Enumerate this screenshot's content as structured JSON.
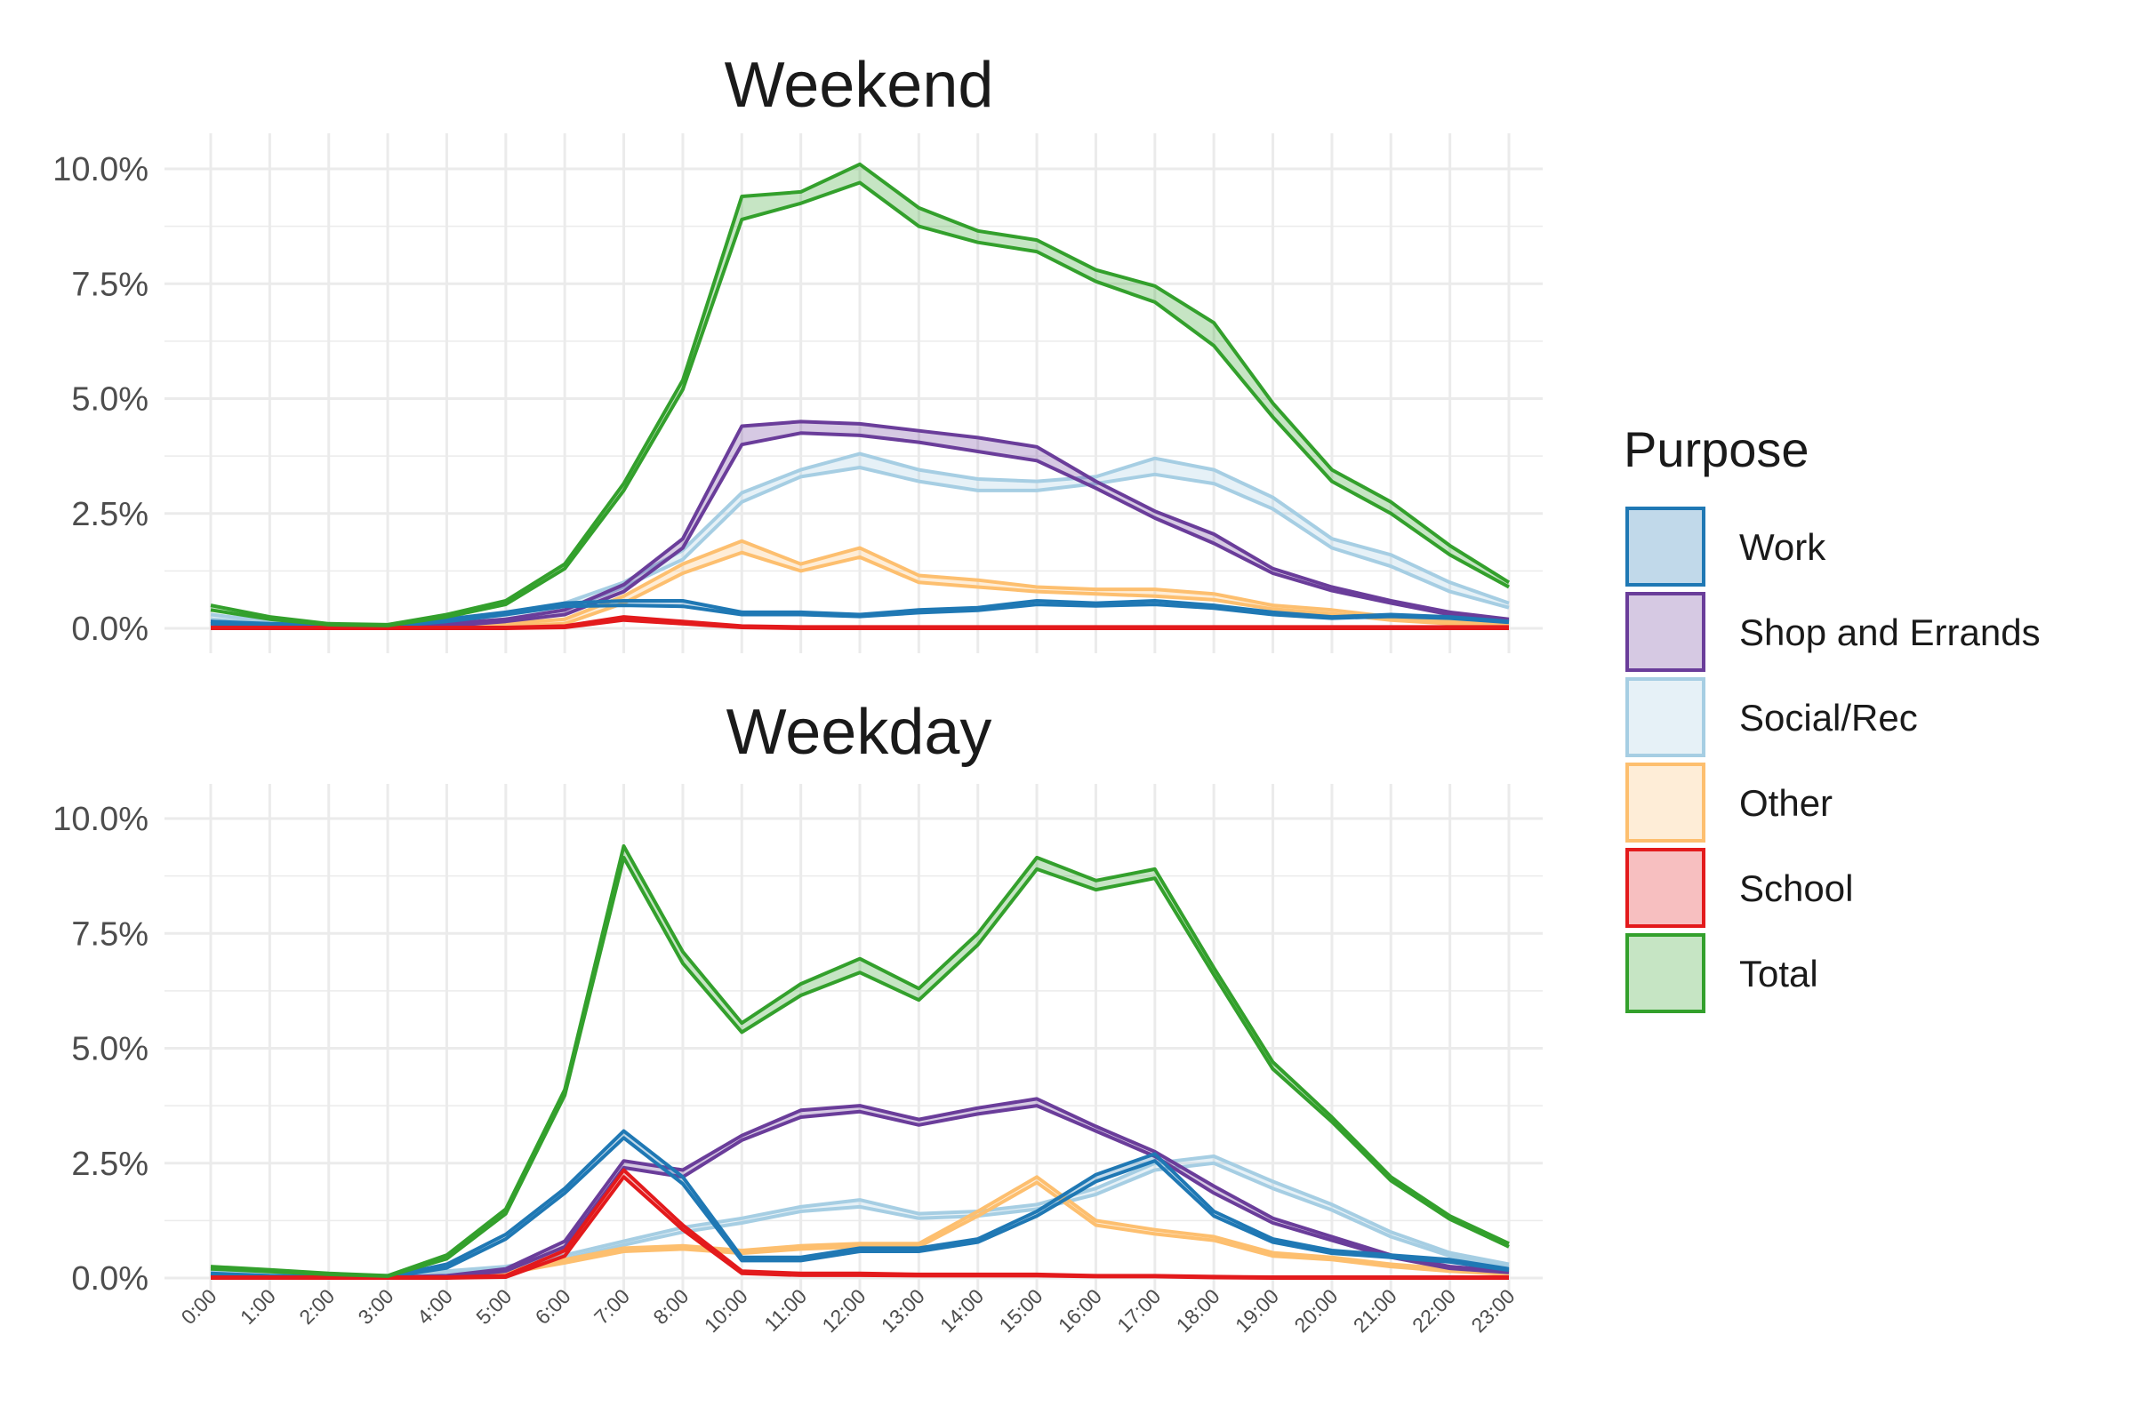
{
  "chart_data": {
    "type": "area",
    "legend": {
      "title": "Purpose",
      "position": "right",
      "items": [
        {
          "key": "work",
          "label": "Work"
        },
        {
          "key": "shop",
          "label": "Shop and Errands"
        },
        {
          "key": "social",
          "label": "Social/Rec"
        },
        {
          "key": "other",
          "label": "Other"
        },
        {
          "key": "school",
          "label": "School"
        },
        {
          "key": "total",
          "label": "Total"
        }
      ]
    },
    "colors": {
      "work": "#1f78b4",
      "shop": "#6a3d9a",
      "social": "#a6cee3",
      "other": "#fdbf6f",
      "school": "#e31a1c",
      "total": "#33a02c",
      "grid": "#ebebeb",
      "background": "#ffffff"
    },
    "x_labels": [
      "0:00",
      "1:00",
      "2:00",
      "3:00",
      "4:00",
      "5:00",
      "6:00",
      "7:00",
      "8:00",
      "10:00",
      "11:00",
      "12:00",
      "13:00",
      "14:00",
      "15:00",
      "16:00",
      "17:00",
      "18:00",
      "19:00",
      "20:00",
      "21:00",
      "22:00",
      "23:00"
    ],
    "y_ticks": [
      0,
      2.5,
      5,
      7.5,
      10
    ],
    "y_tick_labels": [
      "0.0%",
      "2.5%",
      "5.0%",
      "7.5%",
      "10.0%"
    ],
    "ylim": [
      0,
      10.5
    ],
    "grid": true,
    "panels": [
      {
        "title": "Weekend",
        "series": [
          {
            "key": "social",
            "name": "Social/Rec",
            "upper": [
              0.3,
              0.15,
              0.08,
              0.05,
              0.15,
              0.3,
              0.55,
              1.0,
              1.7,
              2.95,
              3.45,
              3.8,
              3.45,
              3.25,
              3.2,
              3.3,
              3.7,
              3.45,
              2.85,
              1.95,
              1.6,
              1.0,
              0.55
            ],
            "lower": [
              0.2,
              0.1,
              0.05,
              0.03,
              0.1,
              0.2,
              0.4,
              0.9,
              1.5,
              2.75,
              3.3,
              3.5,
              3.2,
              3.0,
              3.0,
              3.15,
              3.35,
              3.15,
              2.6,
              1.75,
              1.35,
              0.8,
              0.45
            ]
          },
          {
            "key": "other",
            "name": "Other",
            "upper": [
              0.1,
              0.05,
              0.02,
              0.02,
              0.05,
              0.1,
              0.2,
              0.7,
              1.4,
              1.9,
              1.4,
              1.75,
              1.15,
              1.05,
              0.9,
              0.85,
              0.85,
              0.75,
              0.5,
              0.4,
              0.25,
              0.15,
              0.1
            ],
            "lower": [
              0.05,
              0.02,
              0.01,
              0.01,
              0.03,
              0.05,
              0.1,
              0.55,
              1.2,
              1.65,
              1.25,
              1.55,
              1.0,
              0.9,
              0.8,
              0.75,
              0.7,
              0.62,
              0.42,
              0.32,
              0.18,
              0.1,
              0.07
            ]
          },
          {
            "key": "shop",
            "name": "Shop and Errands",
            "upper": [
              0.15,
              0.08,
              0.04,
              0.03,
              0.1,
              0.2,
              0.4,
              0.95,
              1.95,
              4.4,
              4.5,
              4.45,
              4.3,
              4.15,
              3.95,
              3.2,
              2.55,
              2.05,
              1.3,
              0.9,
              0.6,
              0.35,
              0.2
            ],
            "lower": [
              0.1,
              0.05,
              0.02,
              0.02,
              0.05,
              0.15,
              0.3,
              0.8,
              1.75,
              4.0,
              4.25,
              4.2,
              4.05,
              3.85,
              3.65,
              3.05,
              2.4,
              1.85,
              1.2,
              0.82,
              0.55,
              0.3,
              0.17
            ]
          },
          {
            "key": "work",
            "name": "Work",
            "upper": [
              0.15,
              0.1,
              0.08,
              0.05,
              0.2,
              0.35,
              0.55,
              0.6,
              0.6,
              0.35,
              0.35,
              0.3,
              0.4,
              0.45,
              0.6,
              0.55,
              0.6,
              0.5,
              0.35,
              0.25,
              0.3,
              0.25,
              0.15
            ],
            "lower": [
              0.1,
              0.08,
              0.05,
              0.04,
              0.15,
              0.3,
              0.48,
              0.5,
              0.48,
              0.3,
              0.3,
              0.26,
              0.34,
              0.39,
              0.52,
              0.49,
              0.52,
              0.44,
              0.3,
              0.22,
              0.26,
              0.22,
              0.13
            ]
          },
          {
            "key": "school",
            "name": "School",
            "upper": [
              0.02,
              0.02,
              0.02,
              0.02,
              0.02,
              0.02,
              0.05,
              0.25,
              0.15,
              0.05,
              0.03,
              0.03,
              0.03,
              0.03,
              0.03,
              0.03,
              0.03,
              0.03,
              0.03,
              0.03,
              0.03,
              0.03,
              0.03
            ],
            "lower": [
              0.0,
              0.0,
              0.0,
              0.0,
              0.0,
              0.0,
              0.02,
              0.18,
              0.1,
              0.02,
              0.0,
              0.0,
              0.0,
              0.0,
              0.0,
              0.0,
              0.0,
              0.0,
              0.0,
              0.0,
              0.0,
              0.0,
              0.0
            ]
          },
          {
            "key": "total",
            "name": "Total",
            "upper": [
              0.5,
              0.25,
              0.1,
              0.08,
              0.3,
              0.6,
              1.4,
              3.15,
              5.4,
              9.4,
              9.5,
              10.1,
              9.15,
              8.65,
              8.45,
              7.8,
              7.45,
              6.65,
              4.9,
              3.45,
              2.75,
              1.8,
              1.0
            ],
            "lower": [
              0.4,
              0.2,
              0.08,
              0.06,
              0.25,
              0.52,
              1.3,
              3.0,
              5.2,
              8.9,
              9.25,
              9.7,
              8.75,
              8.4,
              8.2,
              7.55,
              7.1,
              6.15,
              4.6,
              3.2,
              2.5,
              1.6,
              0.9
            ]
          }
        ]
      },
      {
        "title": "Weekday",
        "series": [
          {
            "key": "social",
            "name": "Social/Rec",
            "upper": [
              0.2,
              0.15,
              0.08,
              0.05,
              0.15,
              0.25,
              0.5,
              0.8,
              1.1,
              1.3,
              1.55,
              1.7,
              1.4,
              1.45,
              1.6,
              1.95,
              2.5,
              2.65,
              2.1,
              1.6,
              1.0,
              0.55,
              0.3
            ],
            "lower": [
              0.15,
              0.1,
              0.05,
              0.03,
              0.1,
              0.2,
              0.42,
              0.72,
              1.0,
              1.2,
              1.45,
              1.55,
              1.3,
              1.35,
              1.5,
              1.82,
              2.35,
              2.5,
              1.95,
              1.48,
              0.9,
              0.48,
              0.25
            ]
          },
          {
            "key": "other",
            "name": "Other",
            "upper": [
              0.05,
              0.03,
              0.02,
              0.02,
              0.05,
              0.15,
              0.4,
              0.65,
              0.7,
              0.6,
              0.7,
              0.75,
              0.75,
              1.45,
              2.2,
              1.25,
              1.05,
              0.9,
              0.55,
              0.45,
              0.3,
              0.2,
              0.1
            ],
            "lower": [
              0.03,
              0.02,
              0.01,
              0.01,
              0.03,
              0.1,
              0.33,
              0.58,
              0.63,
              0.54,
              0.63,
              0.68,
              0.68,
              1.35,
              2.08,
              1.15,
              0.96,
              0.82,
              0.48,
              0.4,
              0.25,
              0.15,
              0.08
            ]
          },
          {
            "key": "shop",
            "name": "Shop and Errands",
            "upper": [
              0.05,
              0.03,
              0.02,
              0.02,
              0.05,
              0.2,
              0.8,
              2.55,
              2.35,
              3.1,
              3.65,
              3.75,
              3.45,
              3.7,
              3.9,
              3.3,
              2.75,
              2.0,
              1.3,
              0.9,
              0.5,
              0.25,
              0.15
            ],
            "lower": [
              0.03,
              0.02,
              0.01,
              0.01,
              0.03,
              0.15,
              0.68,
              2.4,
              2.2,
              3.0,
              3.5,
              3.62,
              3.33,
              3.57,
              3.75,
              3.2,
              2.65,
              1.85,
              1.2,
              0.82,
              0.45,
              0.21,
              0.12
            ]
          },
          {
            "key": "work",
            "name": "Work",
            "upper": [
              0.1,
              0.05,
              0.03,
              0.03,
              0.3,
              0.95,
              1.95,
              3.2,
              2.2,
              0.45,
              0.45,
              0.65,
              0.65,
              0.85,
              1.45,
              2.25,
              2.7,
              1.45,
              0.85,
              0.6,
              0.5,
              0.4,
              0.2
            ],
            "lower": [
              0.07,
              0.03,
              0.02,
              0.02,
              0.22,
              0.85,
              1.85,
              3.05,
              2.05,
              0.38,
              0.38,
              0.58,
              0.58,
              0.78,
              1.35,
              2.1,
              2.55,
              1.35,
              0.78,
              0.54,
              0.45,
              0.35,
              0.17
            ]
          },
          {
            "key": "school",
            "name": "School",
            "upper": [
              0.02,
              0.02,
              0.02,
              0.02,
              0.02,
              0.05,
              0.6,
              2.35,
              1.15,
              0.15,
              0.1,
              0.1,
              0.08,
              0.08,
              0.08,
              0.05,
              0.05,
              0.03,
              0.02,
              0.02,
              0.02,
              0.02,
              0.02
            ],
            "lower": [
              0.0,
              0.0,
              0.0,
              0.0,
              0.0,
              0.02,
              0.48,
              2.2,
              1.05,
              0.1,
              0.06,
              0.06,
              0.05,
              0.05,
              0.05,
              0.03,
              0.03,
              0.01,
              0.0,
              0.0,
              0.0,
              0.0,
              0.0
            ]
          },
          {
            "key": "total",
            "name": "Total",
            "upper": [
              0.25,
              0.18,
              0.1,
              0.05,
              0.5,
              1.5,
              4.1,
              9.4,
              7.1,
              5.55,
              6.4,
              6.95,
              6.3,
              7.5,
              9.15,
              8.65,
              8.9,
              6.75,
              4.7,
              3.5,
              2.2,
              1.35,
              0.75
            ],
            "lower": [
              0.2,
              0.14,
              0.08,
              0.04,
              0.42,
              1.4,
              3.98,
              9.15,
              6.85,
              5.35,
              6.15,
              6.65,
              6.05,
              7.25,
              8.9,
              8.45,
              8.7,
              6.6,
              4.55,
              3.4,
              2.12,
              1.28,
              0.68
            ]
          }
        ]
      }
    ]
  }
}
